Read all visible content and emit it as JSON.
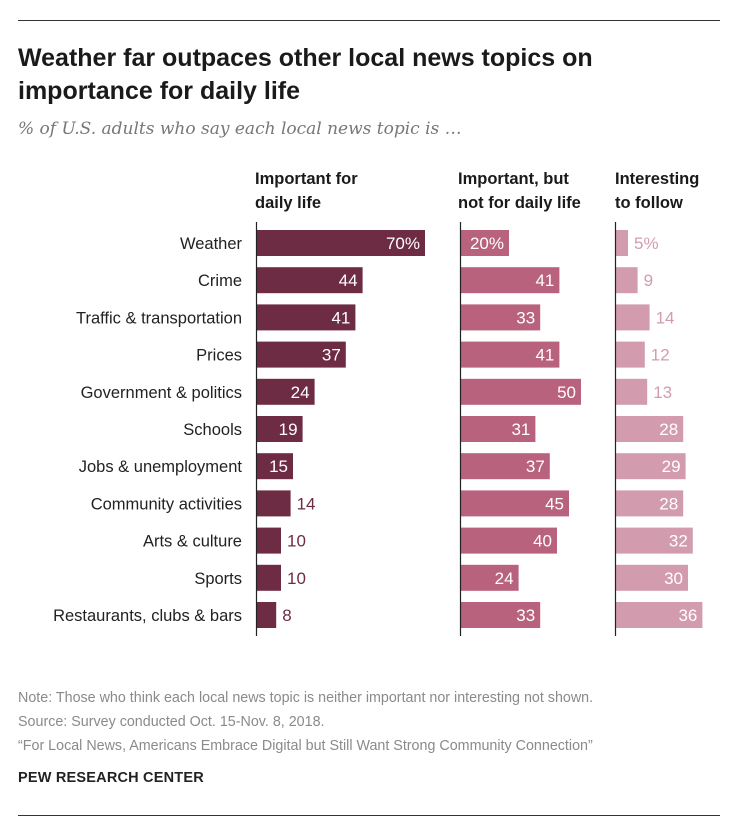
{
  "title": "Weather far outpaces other local news topics on importance for daily life",
  "subtitle": "% of U.S. adults who say each local news topic is …",
  "chart_data": {
    "type": "bar",
    "orientation": "horizontal",
    "categories": [
      "Weather",
      "Crime",
      "Traffic & transportation",
      "Prices",
      "Government & politics",
      "Schools",
      "Jobs & unemployment",
      "Community activities",
      "Arts & culture",
      "Sports",
      "Restaurants, clubs & bars"
    ],
    "series": [
      {
        "name": "Important for daily life",
        "name_lines": [
          "Important for",
          "daily life"
        ],
        "color": "#6e2c44",
        "first_label_suffix": "%",
        "values": [
          70,
          44,
          41,
          37,
          24,
          19,
          15,
          14,
          10,
          10,
          8
        ]
      },
      {
        "name": "Important, but not for daily life",
        "name_lines": [
          "Important, but",
          "not for daily life"
        ],
        "color": "#b8627e",
        "first_label_suffix": "%",
        "values": [
          20,
          41,
          33,
          41,
          50,
          31,
          37,
          45,
          40,
          24,
          33
        ]
      },
      {
        "name": "Interesting to follow",
        "name_lines": [
          "Interesting",
          "to follow"
        ],
        "color": "#d29cae",
        "first_label_suffix": "%",
        "values": [
          5,
          9,
          14,
          12,
          13,
          28,
          29,
          28,
          32,
          30,
          36
        ]
      }
    ]
  },
  "notes": {
    "note": "Note: Those who think each local news topic is neither important nor interesting not shown.",
    "source": "Source: Survey conducted Oct. 15-Nov. 8, 2018.",
    "report": "“For Local News, Americans Embrace Digital but Still Want Strong Community Connection”"
  },
  "brand": "PEW RESEARCH CENTER"
}
